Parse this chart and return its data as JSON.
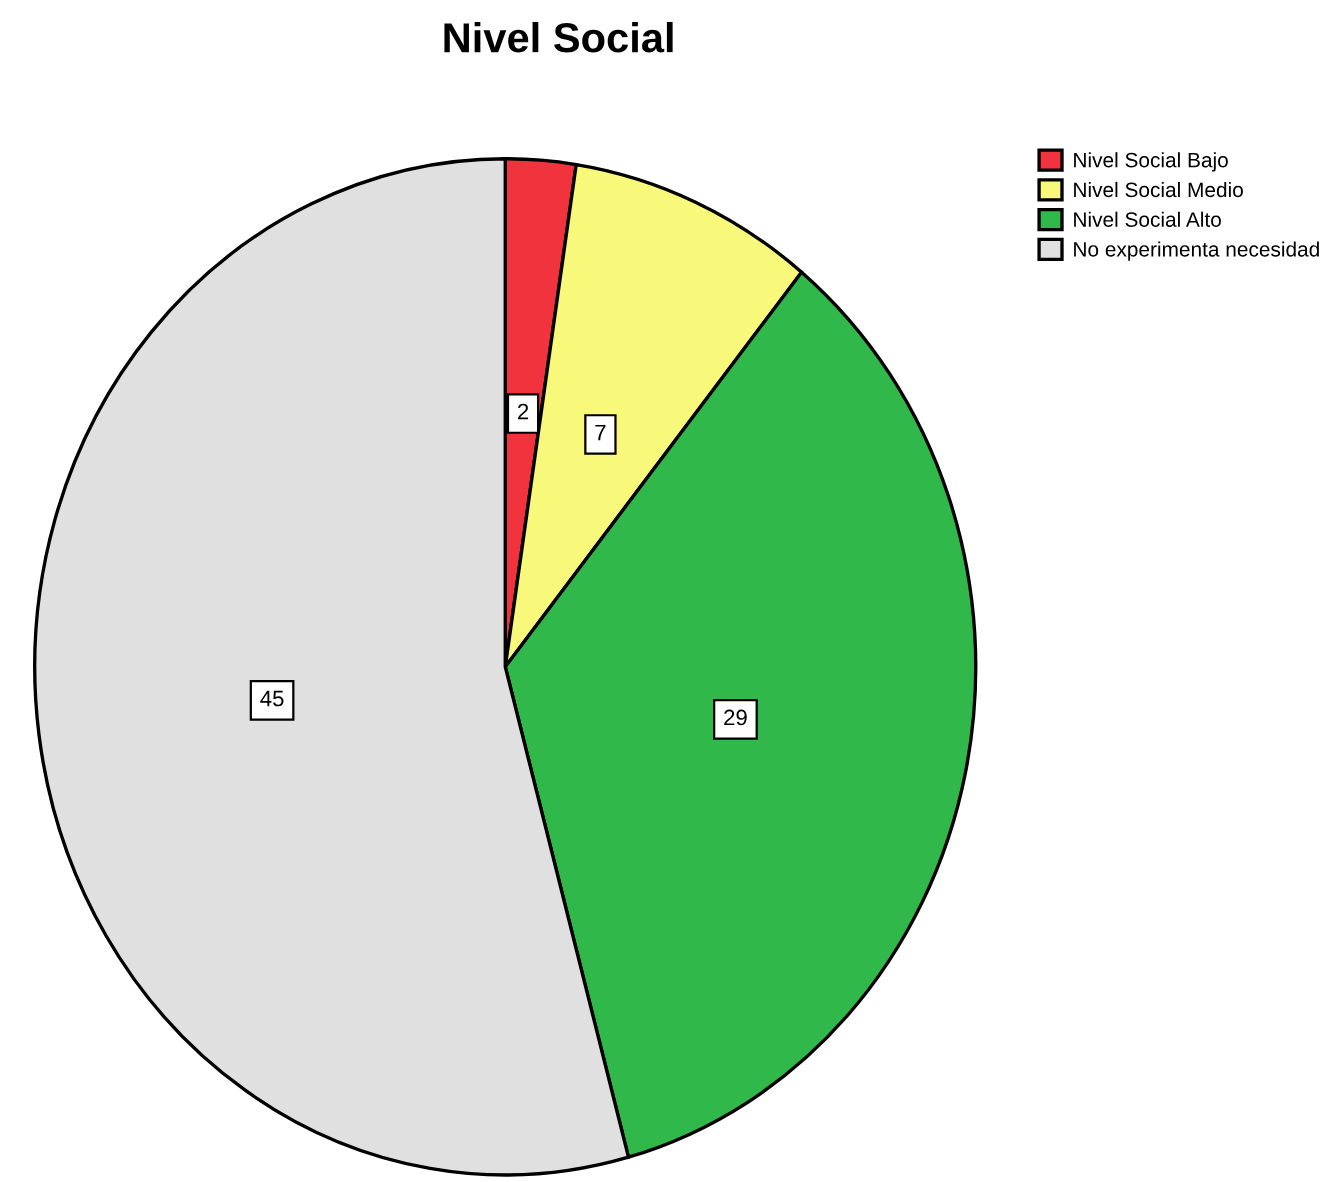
{
  "chart_data": {
    "type": "pie",
    "title": "Nivel Social",
    "categories": [
      "Nivel Social Bajo",
      "Nivel Social Medio",
      "Nivel Social Alto",
      "No experimenta necesidad"
    ],
    "values": [
      2,
      7,
      29,
      45
    ],
    "colors": [
      "#f0333c",
      "#f8f87a",
      "#30b84a",
      "#e0e0e0"
    ],
    "data_labels": true,
    "legend": "top right"
  }
}
